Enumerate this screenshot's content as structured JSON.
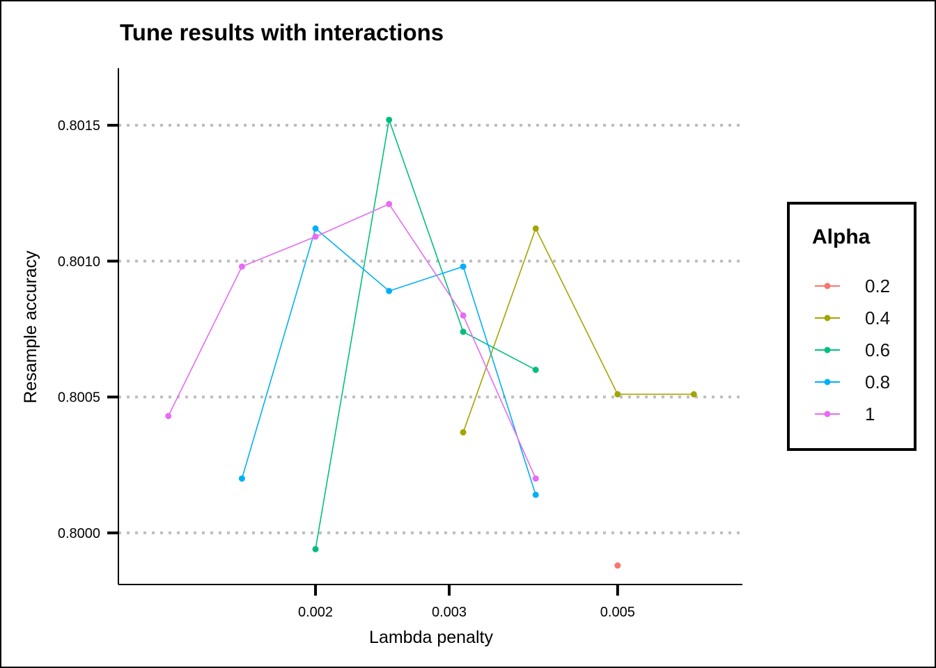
{
  "chart_data": {
    "type": "line",
    "title": "Tune results with interactions",
    "xlabel": "Lambda penalty",
    "ylabel": "Resample accuracy",
    "x_scale": "log10",
    "xlim": [
      0.0011,
      0.0073
    ],
    "ylim": [
      0.79981,
      0.80171
    ],
    "x_ticks": [
      0.002,
      0.003,
      0.005
    ],
    "x_tick_labels": [
      "0.002",
      "0.003",
      "0.005"
    ],
    "y_ticks": [
      0.8,
      0.8005,
      0.801,
      0.8015
    ],
    "y_tick_labels": [
      "0.8000",
      "0.8005",
      "0.8010",
      "0.8015"
    ],
    "grid": "dotted horizontal",
    "legend": {
      "title": "Alpha",
      "position": "right"
    },
    "series": [
      {
        "name": "0.2",
        "color": "#F8766D",
        "x": [
          0.005
        ],
        "y": [
          0.79988
        ]
      },
      {
        "name": "0.4",
        "color": "#A3A500",
        "x": [
          0.00313,
          0.0039,
          0.005,
          0.0063
        ],
        "y": [
          0.80037,
          0.80112,
          0.80051,
          0.80051
        ]
      },
      {
        "name": "0.6",
        "color": "#00BF7D",
        "x": [
          0.002,
          0.0025,
          0.00313,
          0.0039
        ],
        "y": [
          0.79994,
          0.80152,
          0.80074,
          0.8006
        ]
      },
      {
        "name": "0.8",
        "color": "#00B0F6",
        "x": [
          0.0016,
          0.002,
          0.0025,
          0.00313,
          0.0039
        ],
        "y": [
          0.8002,
          0.80112,
          0.80089,
          0.80098,
          0.80014
        ]
      },
      {
        "name": "1",
        "color": "#E76BF3",
        "x": [
          0.00128,
          0.0016,
          0.002,
          0.0025,
          0.00313,
          0.0039
        ],
        "y": [
          0.80043,
          0.80098,
          0.80109,
          0.80121,
          0.8008,
          0.8002
        ]
      }
    ]
  }
}
